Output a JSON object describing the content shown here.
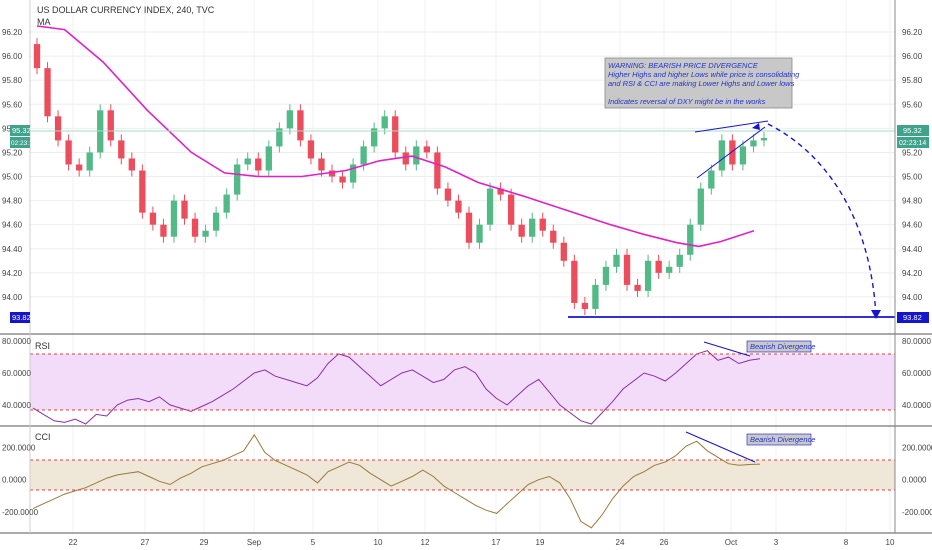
{
  "header": {
    "title": "US DOLLAR CURRENCY INDEX, 240, TVC",
    "ma_label": "MA"
  },
  "price_tags": [
    {
      "text": "95.32",
      "color": "#3fa38c"
    },
    {
      "text": "02:23:14",
      "color": "#3fa38c"
    },
    {
      "text": "93.82",
      "color": "#1515cc"
    }
  ],
  "annotation": {
    "lines": [
      "WARNING:  BEARISH PRICE DIVERGENCE",
      "Higher Highs and higher Lows while price is consolidating",
      "and RSI & CCI are making Lower Highs and Lower lows",
      "",
      "Indicates reversal of DXY might be in the works"
    ]
  },
  "rsi_panel": {
    "label": "RSI",
    "note": "Bearish Divergence"
  },
  "cci_panel": {
    "label": "CCI",
    "note": "Bearish Divergence"
  },
  "colors": {
    "up": "#53b987",
    "down": "#eb4d5c",
    "ma": "#e020c8",
    "rsi": "#8a2fa8",
    "cci": "#9b7a3c",
    "blue": "#1515cc",
    "current_line": "#a3dbc8",
    "rsi_band": "#f3dcf9",
    "cci_band": "#efe7d8",
    "hline": "#e03c3c"
  },
  "chart_data": [
    {
      "type": "candlestick",
      "title": "US DOLLAR CURRENCY INDEX, 240, TVC",
      "y_ticks": [
        "96.20",
        "96.00",
        "95.80",
        "95.60",
        "95.40",
        "95.20",
        "95.00",
        "94.80",
        "94.60",
        "94.40",
        "94.20",
        "94.00"
      ],
      "ylim": [
        93.8,
        96.3
      ],
      "x_ticks": [
        "22",
        "27",
        "29",
        "Sep",
        "5",
        "10",
        "12",
        "17",
        "19",
        "24",
        "26",
        "Oct",
        "3",
        "8",
        "10"
      ],
      "last_price": 95.32,
      "support_level": 93.82,
      "ma_series": [
        [
          0,
          96.25
        ],
        [
          5,
          96.22
        ],
        [
          12,
          95.95
        ],
        [
          20,
          95.55
        ],
        [
          28,
          95.2
        ],
        [
          34,
          95.03
        ],
        [
          40,
          95.0
        ],
        [
          48,
          95.0
        ],
        [
          56,
          95.05
        ],
        [
          62,
          95.13
        ],
        [
          68,
          95.17
        ],
        [
          74,
          95.08
        ],
        [
          80,
          94.95
        ],
        [
          88,
          94.84
        ],
        [
          96,
          94.72
        ],
        [
          104,
          94.6
        ],
        [
          110,
          94.52
        ],
        [
          116,
          94.45
        ],
        [
          120,
          94.42
        ],
        [
          124,
          94.46
        ],
        [
          130,
          94.55
        ]
      ],
      "candles_oc": [
        [
          96.1,
          95.9
        ],
        [
          95.9,
          95.5
        ],
        [
          95.5,
          95.3
        ],
        [
          95.3,
          95.1
        ],
        [
          95.1,
          95.05
        ],
        [
          95.05,
          95.2
        ],
        [
          95.2,
          95.55
        ],
        [
          95.55,
          95.3
        ],
        [
          95.3,
          95.15
        ],
        [
          95.15,
          95.05
        ],
        [
          95.05,
          94.7
        ],
        [
          94.7,
          94.6
        ],
        [
          94.6,
          94.5
        ],
        [
          94.5,
          94.8
        ],
        [
          94.8,
          94.65
        ],
        [
          94.65,
          94.5
        ],
        [
          94.5,
          94.55
        ],
        [
          94.55,
          94.7
        ],
        [
          94.7,
          94.85
        ],
        [
          94.85,
          95.1
        ],
        [
          95.1,
          95.15
        ],
        [
          95.15,
          95.05
        ],
        [
          95.05,
          95.25
        ],
        [
          95.25,
          95.4
        ],
        [
          95.4,
          95.55
        ],
        [
          95.55,
          95.3
        ],
        [
          95.3,
          95.15
        ],
        [
          95.15,
          95.05
        ],
        [
          95.05,
          95.0
        ],
        [
          95.0,
          94.95
        ],
        [
          94.95,
          95.1
        ],
        [
          95.1,
          95.25
        ],
        [
          95.25,
          95.4
        ],
        [
          95.4,
          95.5
        ],
        [
          95.5,
          95.2
        ],
        [
          95.2,
          95.1
        ],
        [
          95.1,
          95.25
        ],
        [
          95.25,
          95.2
        ],
        [
          95.2,
          94.9
        ],
        [
          94.9,
          94.8
        ],
        [
          94.8,
          94.7
        ],
        [
          94.7,
          94.45
        ],
        [
          94.45,
          94.6
        ],
        [
          94.6,
          94.9
        ],
        [
          94.9,
          94.85
        ],
        [
          94.85,
          94.6
        ],
        [
          94.6,
          94.5
        ],
        [
          94.5,
          94.65
        ],
        [
          94.65,
          94.55
        ],
        [
          94.55,
          94.45
        ],
        [
          94.45,
          94.3
        ],
        [
          94.3,
          93.95
        ],
        [
          93.95,
          93.9
        ],
        [
          93.9,
          94.1
        ],
        [
          94.1,
          94.25
        ],
        [
          94.25,
          94.35
        ],
        [
          94.35,
          94.1
        ],
        [
          94.1,
          94.05
        ],
        [
          94.05,
          94.3
        ],
        [
          94.3,
          94.2
        ],
        [
          94.2,
          94.25
        ],
        [
          94.25,
          94.35
        ],
        [
          94.35,
          94.6
        ],
        [
          94.6,
          94.9
        ],
        [
          94.9,
          95.05
        ],
        [
          95.05,
          95.3
        ],
        [
          95.3,
          95.1
        ],
        [
          95.1,
          95.25
        ],
        [
          95.25,
          95.3
        ],
        [
          95.3,
          95.32
        ]
      ]
    },
    {
      "type": "line",
      "title": "RSI",
      "y_ticks": [
        "80.0000",
        "60.0000",
        "40.0000"
      ],
      "ylim": [
        28,
        82
      ],
      "bands": [
        30,
        70
      ],
      "values": [
        38,
        34,
        30,
        29,
        31,
        28,
        34,
        33,
        40,
        43,
        44,
        42,
        45,
        40,
        38,
        36,
        39,
        42,
        46,
        50,
        55,
        60,
        62,
        58,
        56,
        54,
        52,
        57,
        66,
        72,
        70,
        64,
        58,
        52,
        56,
        60,
        62,
        58,
        54,
        56,
        62,
        64,
        60,
        50,
        44,
        40,
        46,
        52,
        56,
        48,
        40,
        35,
        30,
        28,
        35,
        42,
        50,
        55,
        60,
        58,
        55,
        60,
        66,
        72,
        74,
        68,
        70,
        66,
        68,
        69
      ]
    },
    {
      "type": "line",
      "title": "CCI",
      "y_ticks": [
        "200.0000",
        "0.0000",
        "-200.0000"
      ],
      "ylim": [
        -320,
        310
      ],
      "bands": [
        -100,
        100
      ],
      "values": [
        -180,
        -150,
        -120,
        -90,
        -70,
        -50,
        -20,
        10,
        30,
        40,
        50,
        20,
        -10,
        -30,
        10,
        40,
        80,
        100,
        120,
        150,
        180,
        280,
        170,
        120,
        90,
        60,
        30,
        -20,
        50,
        80,
        110,
        90,
        40,
        0,
        -40,
        -10,
        20,
        60,
        20,
        -40,
        -80,
        -120,
        -160,
        -190,
        -210,
        -150,
        -90,
        -30,
        0,
        20,
        -20,
        -120,
        -260,
        -300,
        -220,
        -120,
        -40,
        20,
        50,
        90,
        110,
        150,
        210,
        240,
        180,
        140,
        100,
        90,
        95,
        97
      ]
    }
  ]
}
